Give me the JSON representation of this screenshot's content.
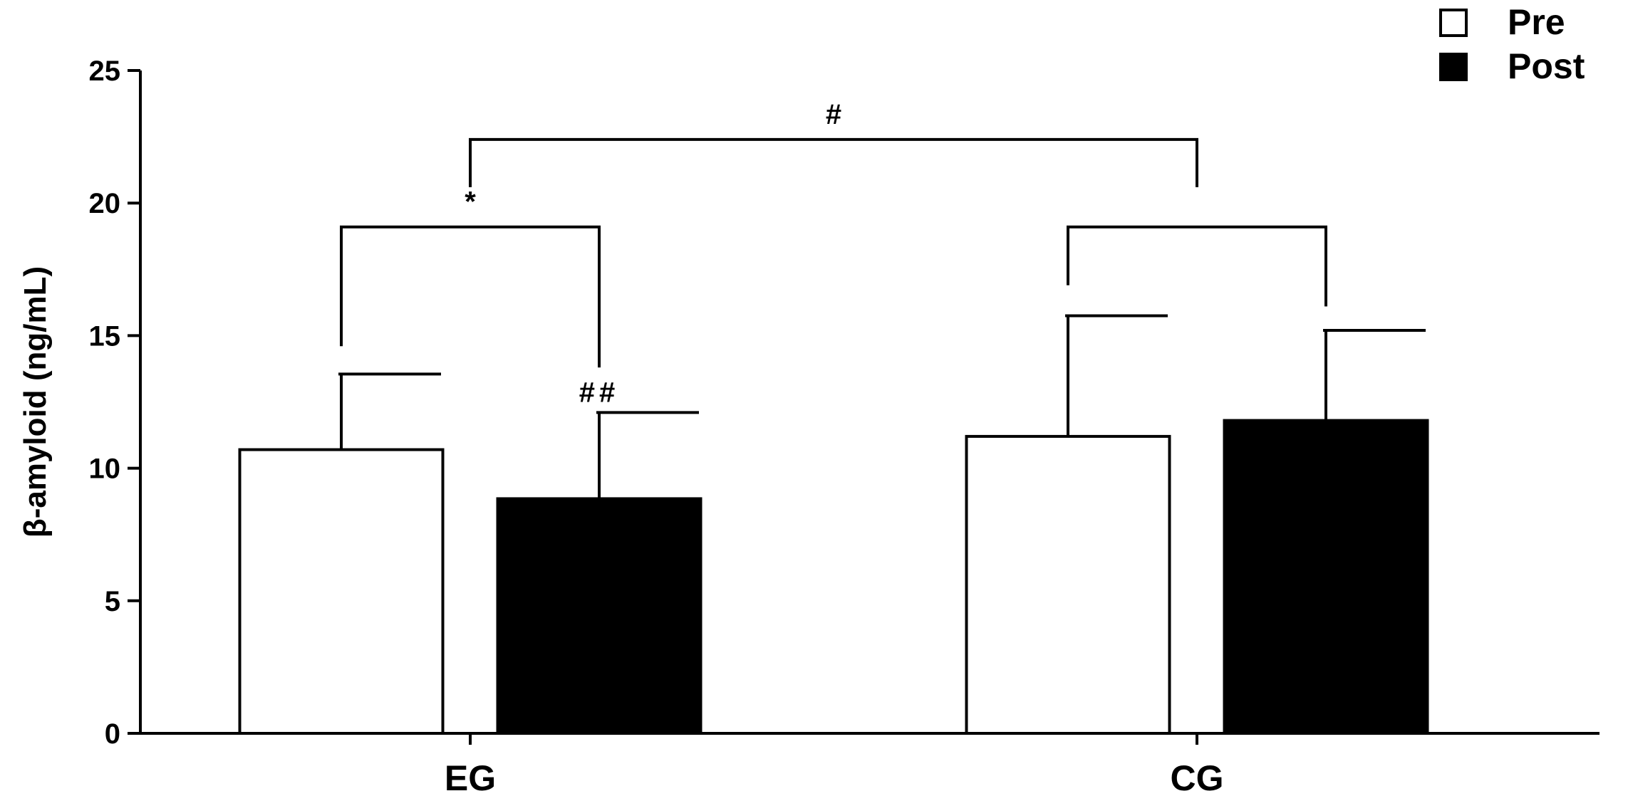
{
  "chart_data": {
    "type": "bar",
    "ylabel": "β-amyloid (ng/mL)",
    "xlabel": "",
    "ylim": [
      0,
      25
    ],
    "yticks": [
      0,
      5,
      10,
      15,
      20,
      25
    ],
    "categories": [
      "EG",
      "CG"
    ],
    "series": [
      {
        "name": "Pre",
        "values": [
          10.7,
          11.2
        ],
        "errors": [
          2.85,
          4.55
        ],
        "color": "#ffffff"
      },
      {
        "name": "Post",
        "values": [
          8.85,
          11.8
        ],
        "errors": [
          3.25,
          3.4
        ],
        "color": "#000000"
      }
    ],
    "legend": {
      "position": "top-right"
    },
    "grid": false,
    "annotations": [
      {
        "label": "*",
        "from": [
          0,
          0
        ],
        "to": [
          0,
          1
        ],
        "bracket_y": 19.1,
        "left_end": 14.6,
        "right_end": 13.8
      },
      {
        "label": "",
        "from": [
          1,
          0
        ],
        "to": [
          1,
          1
        ],
        "bracket_y": 19.1,
        "left_end": 16.9,
        "right_end": 16.1
      },
      {
        "label": "#",
        "from": "EG",
        "to": "CG",
        "bracket_y": 22.4,
        "left_end": 20.6,
        "right_end": 20.6
      },
      {
        "label": "##",
        "on": [
          0,
          1
        ],
        "y": 12.5
      }
    ]
  }
}
